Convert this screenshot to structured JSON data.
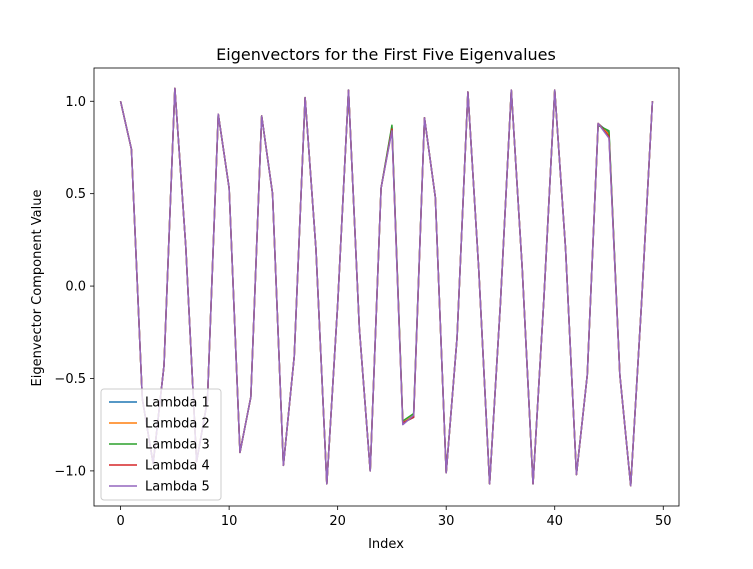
{
  "chart_data": {
    "type": "line",
    "title": "Eigenvectors for the First Five Eigenvalues",
    "xlabel": "Index",
    "ylabel": "Eigenvector Component Value",
    "xlim": [
      -2.45,
      51.45
    ],
    "ylim": [
      -1.19,
      1.18
    ],
    "xticks": [
      0,
      10,
      20,
      30,
      40,
      50
    ],
    "yticks": [
      -1.0,
      -0.5,
      0.0,
      0.5,
      1.0
    ],
    "xtick_labels": [
      "0",
      "10",
      "20",
      "30",
      "40",
      "50"
    ],
    "ytick_labels": [
      "−1.0",
      "−0.5",
      "0.0",
      "0.5",
      "1.0"
    ],
    "grid": false,
    "legend_position": "lower-left",
    "x": [
      0,
      1,
      2,
      3,
      4,
      5,
      6,
      7,
      8,
      9,
      10,
      11,
      12,
      13,
      14,
      15,
      16,
      17,
      18,
      19,
      20,
      21,
      22,
      23,
      24,
      25,
      26,
      27,
      28,
      29,
      30,
      31,
      32,
      33,
      34,
      35,
      36,
      37,
      38,
      39,
      40,
      41,
      42,
      43,
      44,
      45,
      46,
      47,
      48,
      49
    ],
    "series": [
      {
        "name": "Lambda 1",
        "color": "#1f77b4",
        "values": [
          1.0,
          0.74,
          -0.61,
          -0.96,
          -0.43,
          1.07,
          0.22,
          -0.95,
          -0.62,
          0.93,
          0.53,
          -0.9,
          -0.6,
          0.92,
          0.5,
          -0.97,
          -0.38,
          1.02,
          0.2,
          -1.07,
          -0.1,
          1.06,
          -0.23,
          -1.0,
          0.53,
          0.86,
          -0.74,
          -0.71,
          0.91,
          0.48,
          -1.01,
          -0.28,
          1.05,
          0.09,
          -1.07,
          -0.09,
          1.06,
          0.1,
          -1.07,
          -0.07,
          1.06,
          0.2,
          -1.02,
          -0.48,
          0.88,
          0.83,
          -0.48,
          -1.08,
          -0.09,
          1.0
        ]
      },
      {
        "name": "Lambda 2",
        "color": "#ff7f0e",
        "values": [
          1.0,
          0.74,
          -0.61,
          -0.96,
          -0.43,
          1.07,
          0.22,
          -0.95,
          -0.62,
          0.93,
          0.53,
          -0.9,
          -0.6,
          0.92,
          0.5,
          -0.97,
          -0.38,
          1.02,
          0.2,
          -1.07,
          -0.1,
          1.06,
          -0.23,
          -1.0,
          0.53,
          0.85,
          -0.74,
          -0.7,
          0.91,
          0.48,
          -1.01,
          -0.28,
          1.05,
          0.09,
          -1.07,
          -0.09,
          1.06,
          0.1,
          -1.07,
          -0.07,
          1.06,
          0.2,
          -1.02,
          -0.48,
          0.88,
          0.82,
          -0.48,
          -1.08,
          -0.09,
          1.0
        ]
      },
      {
        "name": "Lambda 3",
        "color": "#2ca02c",
        "values": [
          1.0,
          0.74,
          -0.61,
          -0.96,
          -0.43,
          1.07,
          0.22,
          -0.95,
          -0.62,
          0.93,
          0.53,
          -0.9,
          -0.6,
          0.92,
          0.5,
          -0.97,
          -0.38,
          1.02,
          0.2,
          -1.07,
          -0.1,
          1.06,
          -0.23,
          -1.0,
          0.53,
          0.87,
          -0.73,
          -0.69,
          0.91,
          0.48,
          -1.01,
          -0.28,
          1.05,
          0.09,
          -1.07,
          -0.09,
          1.06,
          0.1,
          -1.07,
          -0.07,
          1.06,
          0.2,
          -1.02,
          -0.48,
          0.87,
          0.84,
          -0.48,
          -1.08,
          -0.09,
          1.0
        ]
      },
      {
        "name": "Lambda 4",
        "color": "#d62728",
        "values": [
          1.0,
          0.74,
          -0.61,
          -0.96,
          -0.43,
          1.07,
          0.22,
          -0.95,
          -0.62,
          0.93,
          0.53,
          -0.9,
          -0.6,
          0.92,
          0.5,
          -0.97,
          -0.38,
          1.02,
          0.2,
          -1.07,
          -0.1,
          1.06,
          -0.23,
          -1.0,
          0.53,
          0.85,
          -0.74,
          -0.71,
          0.91,
          0.48,
          -1.01,
          -0.28,
          1.05,
          0.09,
          -1.07,
          -0.09,
          1.06,
          0.1,
          -1.07,
          -0.07,
          1.06,
          0.2,
          -1.02,
          -0.48,
          0.88,
          0.81,
          -0.48,
          -1.08,
          -0.09,
          1.0
        ]
      },
      {
        "name": "Lambda 5",
        "color": "#9467bd",
        "values": [
          1.0,
          0.74,
          -0.61,
          -0.96,
          -0.43,
          1.07,
          0.22,
          -0.95,
          -0.62,
          0.93,
          0.53,
          -0.9,
          -0.6,
          0.92,
          0.5,
          -0.97,
          -0.38,
          1.02,
          0.2,
          -1.07,
          -0.1,
          1.06,
          -0.23,
          -1.0,
          0.53,
          0.84,
          -0.75,
          -0.7,
          0.91,
          0.48,
          -1.01,
          -0.28,
          1.05,
          0.09,
          -1.07,
          -0.09,
          1.06,
          0.1,
          -1.07,
          -0.07,
          1.06,
          0.2,
          -1.02,
          -0.48,
          0.88,
          0.8,
          -0.48,
          -1.08,
          -0.09,
          1.0
        ]
      }
    ]
  }
}
